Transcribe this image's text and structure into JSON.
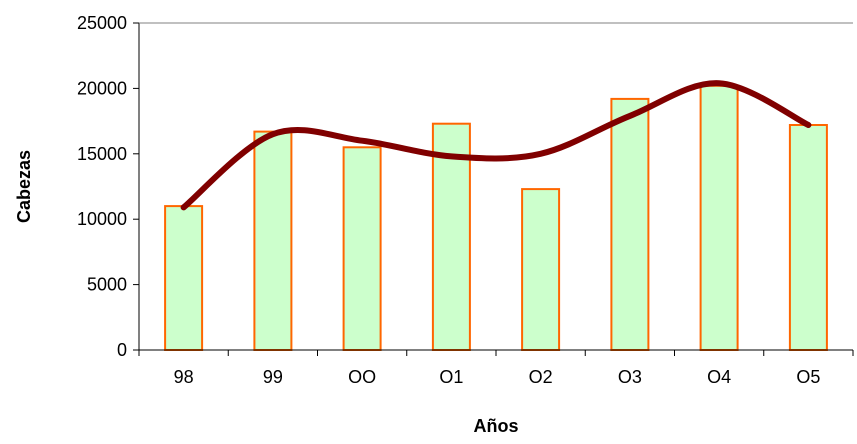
{
  "chart_data": {
    "type": "bar",
    "title": "",
    "xlabel": "Años",
    "ylabel": "Cabezas",
    "categories": [
      "98",
      "99",
      "OO",
      "O1",
      "O2",
      "O3",
      "O4",
      "O5"
    ],
    "values": [
      11000,
      16700,
      15500,
      17300,
      12300,
      19200,
      20200,
      17200
    ],
    "ylim": [
      0,
      25000
    ],
    "yticks": [
      "0",
      "5000",
      "10000",
      "15000",
      "20000",
      "25000"
    ],
    "grid": false,
    "legend": "none",
    "trendline": {
      "type": "polynomial",
      "values": [
        10900,
        16500,
        16000,
        14800,
        15000,
        17900,
        20400,
        17200
      ]
    },
    "colors": {
      "bar_fill": "#ccffcc",
      "bar_stroke": "#ff6600",
      "trendline": "#800000",
      "axis": "#000000"
    }
  }
}
